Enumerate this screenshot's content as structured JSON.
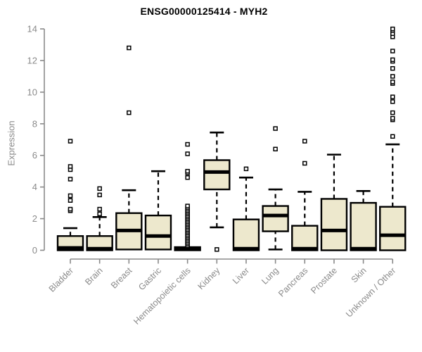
{
  "chart_data": {
    "type": "boxplot",
    "title": "ENSG00000125414 - MYH2",
    "xlabel": "",
    "ylabel": "Expression",
    "ylim": [
      0,
      14
    ],
    "yticks": [
      0,
      2,
      4,
      6,
      8,
      10,
      12,
      14
    ],
    "grid": false,
    "legend": false,
    "colors": {
      "box_fill": "#EDE8CD",
      "box_stroke": "#000000",
      "median": "#000000",
      "outlier_fill": "#ffffff",
      "axis": "#8a8a8a",
      "tick_label": "#8a8a8a",
      "title": "#000000"
    },
    "categories": [
      "Bladder",
      "Brain",
      "Breast",
      "Gastric",
      "Hematopoietic cells",
      "Kidney",
      "Liver",
      "Lung",
      "Pancreas",
      "Prostate",
      "Skin",
      "Unknown / Other"
    ],
    "boxes": [
      {
        "category": "Bladder",
        "whisker_low": 0,
        "q1": 0,
        "median": 0.15,
        "q3": 0.9,
        "whisker_high": 1.4,
        "outliers": [
          2.5,
          2.6,
          3.15,
          3.45,
          4.5,
          5.1,
          5.3,
          6.9
        ]
      },
      {
        "category": "Brain",
        "whisker_low": 0,
        "q1": 0,
        "median": 0.1,
        "q3": 0.9,
        "whisker_high": 2.1,
        "outliers": [
          2.3,
          2.6,
          3.5,
          3.9
        ]
      },
      {
        "category": "Breast",
        "whisker_low": 0,
        "q1": 0.05,
        "median": 1.25,
        "q3": 2.35,
        "whisker_high": 3.8,
        "outliers": [
          8.7,
          12.8
        ]
      },
      {
        "category": "Gastric",
        "whisker_low": 0,
        "q1": 0.05,
        "median": 0.9,
        "q3": 2.2,
        "whisker_high": 5.0,
        "outliers": []
      },
      {
        "category": "Hematopoietic cells",
        "whisker_low": 0,
        "q1": 0,
        "median": 0.1,
        "q3": 0.2,
        "whisker_high": 0.25,
        "outliers": [
          0.3,
          0.4,
          0.5,
          0.6,
          0.7,
          0.8,
          0.9,
          1.0,
          1.1,
          1.2,
          1.3,
          1.4,
          1.5,
          1.6,
          1.7,
          1.8,
          1.9,
          2.0,
          2.1,
          2.2,
          2.3,
          2.4,
          2.5,
          2.6,
          2.7,
          2.8,
          4.6,
          4.9,
          5.0,
          6.1,
          6.7
        ]
      },
      {
        "category": "Kidney",
        "whisker_low": 1.45,
        "q1": 3.85,
        "median": 4.95,
        "q3": 5.7,
        "whisker_high": 7.45,
        "outliers": [
          0.05
        ]
      },
      {
        "category": "Liver",
        "whisker_low": 0,
        "q1": 0,
        "median": 0.1,
        "q3": 1.95,
        "whisker_high": 4.6,
        "outliers": [
          5.15
        ]
      },
      {
        "category": "Lung",
        "whisker_low": 0.05,
        "q1": 1.2,
        "median": 2.2,
        "q3": 2.8,
        "whisker_high": 3.85,
        "outliers": [
          6.4,
          7.7
        ]
      },
      {
        "category": "Pancreas",
        "whisker_low": 0,
        "q1": 0,
        "median": 0.1,
        "q3": 1.55,
        "whisker_high": 3.7,
        "outliers": [
          5.5,
          6.9
        ]
      },
      {
        "category": "Prostate",
        "whisker_low": 0,
        "q1": 0,
        "median": 1.25,
        "q3": 3.25,
        "whisker_high": 6.05,
        "outliers": []
      },
      {
        "category": "Skin",
        "whisker_low": 0,
        "q1": 0,
        "median": 0.1,
        "q3": 3.0,
        "whisker_high": 3.75,
        "outliers": []
      },
      {
        "category": "Unknown / Other",
        "whisker_low": 0,
        "q1": 0,
        "median": 0.95,
        "q3": 2.75,
        "whisker_high": 6.7,
        "outliers": [
          7.2,
          8.25,
          8.35,
          8.7,
          9.4,
          9.7,
          10.55,
          10.65,
          11.0,
          11.5,
          11.95,
          12.05,
          12.6,
          13.5,
          13.7,
          13.9,
          14.0
        ]
      }
    ]
  }
}
